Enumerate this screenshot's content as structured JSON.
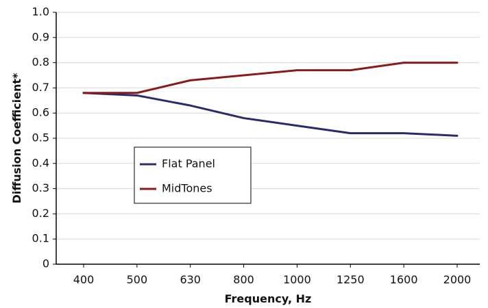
{
  "chart_data": {
    "type": "line",
    "categories": [
      "400",
      "500",
      "630",
      "800",
      "1000",
      "1250",
      "1600",
      "2000"
    ],
    "series": [
      {
        "name": "Flat Panel",
        "values": [
          0.68,
          0.67,
          0.63,
          0.58,
          0.55,
          0.52,
          0.52,
          0.51
        ],
        "color": "#2a2a6e"
      },
      {
        "name": "MidTones",
        "values": [
          0.68,
          0.68,
          0.73,
          0.75,
          0.77,
          0.77,
          0.8,
          0.8
        ],
        "color": "#8b1a1a"
      }
    ],
    "xlabel": "Frequency, Hz",
    "ylabel": "Diffusion Coefficient*",
    "ylim": [
      0,
      1.0
    ],
    "yticks": [
      "0",
      "0.1",
      "0.2",
      "0.3",
      "0.4",
      "0.5",
      "0.6",
      "0.7",
      "0.8",
      "0.9",
      "1.0"
    ],
    "grid": true,
    "legend_position": "center-left"
  }
}
